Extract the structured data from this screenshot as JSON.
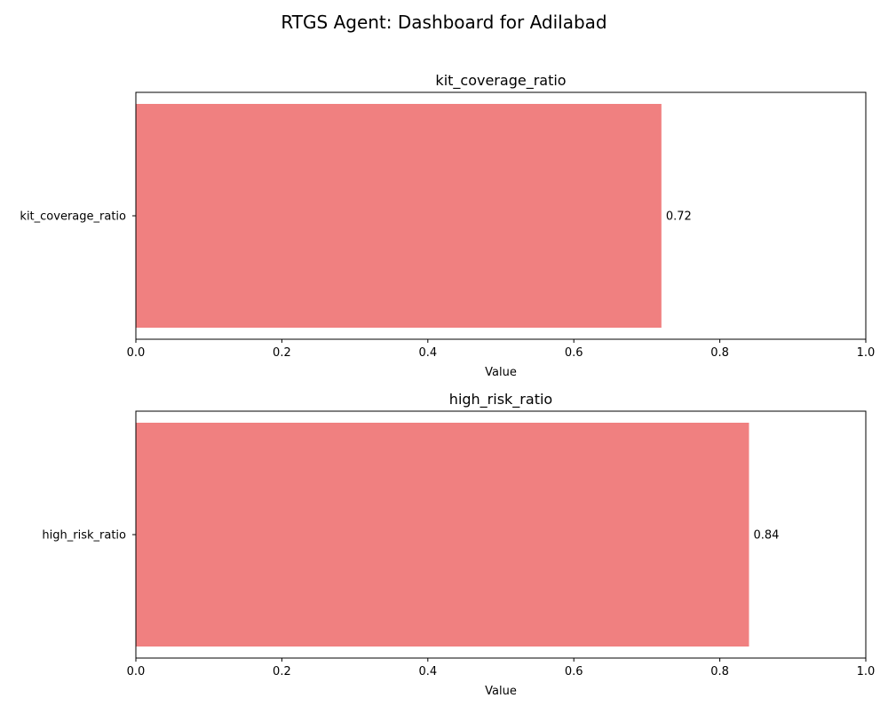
{
  "figure_title": "RTGS Agent: Dashboard for Adilabad",
  "colors": {
    "bar": "#f08080",
    "axes": "#000000",
    "background": "#ffffff"
  },
  "chart_data": [
    {
      "type": "bar",
      "orientation": "horizontal",
      "title": "kit_coverage_ratio",
      "categories": [
        "kit_coverage_ratio"
      ],
      "values": [
        0.72
      ],
      "value_labels": [
        "0.72"
      ],
      "xlabel": "Value",
      "ylabel": "",
      "xlim": [
        0,
        1.0
      ],
      "xticks": [
        0.0,
        0.2,
        0.4,
        0.6,
        0.8,
        1.0
      ],
      "xtick_labels": [
        "0.0",
        "0.2",
        "0.4",
        "0.6",
        "0.8",
        "1.0"
      ],
      "grid": false
    },
    {
      "type": "bar",
      "orientation": "horizontal",
      "title": "high_risk_ratio",
      "categories": [
        "high_risk_ratio"
      ],
      "values": [
        0.84
      ],
      "value_labels": [
        "0.84"
      ],
      "xlabel": "Value",
      "ylabel": "",
      "xlim": [
        0,
        1.0
      ],
      "xticks": [
        0.0,
        0.2,
        0.4,
        0.6,
        0.8,
        1.0
      ],
      "xtick_labels": [
        "0.0",
        "0.2",
        "0.4",
        "0.6",
        "0.8",
        "1.0"
      ],
      "grid": false
    }
  ]
}
